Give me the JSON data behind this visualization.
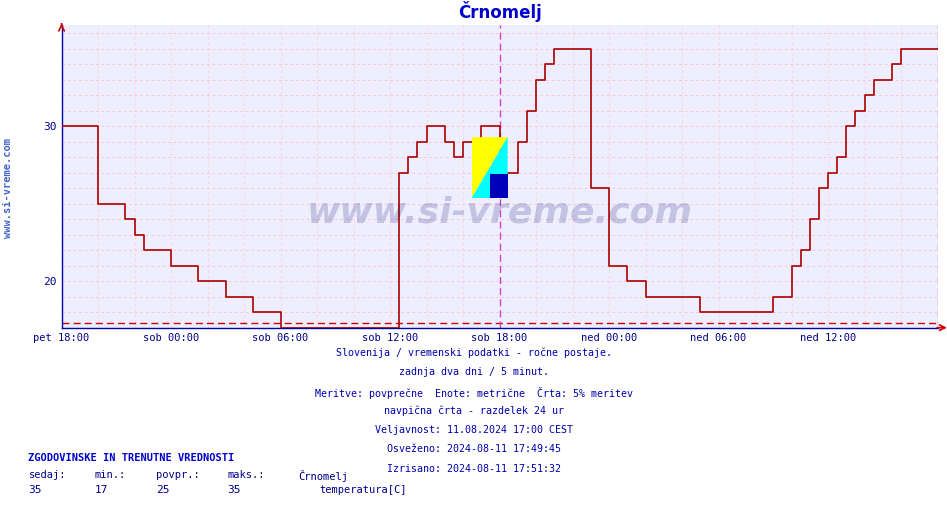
{
  "title": "Črnomelj",
  "title_color": "#0000cc",
  "bg_color": "#ffffff",
  "plot_bg_color": "#eeeeff",
  "line_color": "#aa0000",
  "grid_color_h": "#ffbbbb",
  "grid_color_v": "#ffcccc",
  "axis_color": "#0000aa",
  "tick_label_color": "#000088",
  "vline_color": "#cc44cc",
  "vline2_color": "#cc44cc",
  "hline_color": "#cc0000",
  "watermark_text": "www.si-vreme.com",
  "watermark_color": "#000066",
  "watermark_alpha": 0.18,
  "ylabel_text": "www.si-vreme.com",
  "ylabel_color": "#4466cc",
  "x_tick_labels": [
    "pet 18:00",
    "sob 00:00",
    "sob 06:00",
    "sob 12:00",
    "sob 18:00",
    "ned 00:00",
    "ned 06:00",
    "ned 12:00"
  ],
  "x_tick_positions": [
    0,
    72,
    144,
    216,
    288,
    360,
    432,
    504
  ],
  "ylim": [
    17.0,
    36.5
  ],
  "xlim": [
    0,
    576
  ],
  "vline_x": 288,
  "vline2_x": 576,
  "hline_y": 17.3,
  "min_val": 17,
  "max_val": 35,
  "avg_val": 25,
  "cur_val": 35,
  "bottom_text1": "Slovenija / vremenski podatki - ročne postaje.",
  "bottom_text2": "zadnja dva dni / 5 minut.",
  "bottom_text3": "Meritve: povprečne  Enote: metrične  Črta: 5% meritev",
  "bottom_text4": "navpična črta - razdelek 24 ur",
  "bottom_text5": "Veljavnost: 11.08.2024 17:00 CEST",
  "bottom_text6": "Osveženo: 2024-08-11 17:49:45",
  "bottom_text7": "Izrisano: 2024-08-11 17:51:32",
  "legend_label": "temperatura[C]",
  "legend_color": "#cc0000",
  "stats_header": "ZGODOVINSKE IN TRENUTNE VREDNOSTI",
  "stats_cols": [
    "sedaj:",
    "min.:",
    "povpr.:",
    "maks.:",
    "Črnomelj"
  ],
  "stats_vals": [
    "35",
    "17",
    "25",
    "35"
  ],
  "temp_data_x": [
    0,
    6,
    12,
    18,
    24,
    30,
    36,
    42,
    48,
    54,
    60,
    66,
    72,
    78,
    84,
    90,
    96,
    102,
    108,
    114,
    120,
    126,
    132,
    138,
    144,
    150,
    156,
    162,
    168,
    174,
    180,
    186,
    192,
    198,
    204,
    210,
    216,
    222,
    228,
    234,
    240,
    246,
    252,
    258,
    264,
    270,
    276,
    282,
    288,
    294,
    300,
    306,
    312,
    318,
    324,
    330,
    336,
    342,
    348,
    354,
    360,
    366,
    372,
    378,
    384,
    390,
    396,
    402,
    408,
    414,
    420,
    426,
    432,
    438,
    444,
    450,
    456,
    462,
    468,
    474,
    480,
    486,
    492,
    498,
    504,
    510,
    516,
    522,
    528,
    534,
    540,
    546,
    552,
    558,
    564,
    570,
    576
  ],
  "temp_data_y": [
    30,
    30,
    30,
    30,
    25,
    25,
    25,
    24,
    23,
    22,
    22,
    22,
    21,
    21,
    21,
    20,
    20,
    20,
    19,
    19,
    19,
    18,
    18,
    18,
    17,
    17,
    17,
    17,
    17,
    17,
    17,
    17,
    17,
    17,
    17,
    17,
    17,
    27,
    28,
    29,
    30,
    30,
    29,
    28,
    29,
    29,
    30,
    30,
    27,
    27,
    29,
    31,
    33,
    34,
    35,
    35,
    35,
    35,
    26,
    26,
    21,
    21,
    20,
    20,
    19,
    19,
    19,
    19,
    19,
    19,
    18,
    18,
    18,
    18,
    18,
    18,
    18,
    18,
    19,
    19,
    21,
    22,
    24,
    26,
    27,
    28,
    30,
    31,
    32,
    33,
    33,
    34,
    35,
    35,
    35,
    35,
    35
  ]
}
